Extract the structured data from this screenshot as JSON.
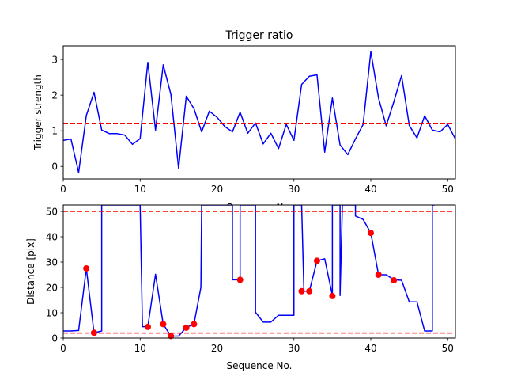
{
  "chart_data": [
    {
      "type": "line",
      "title": "Trigger ratio",
      "xlabel": "Sequence No.",
      "ylabel": "Trigger strength",
      "xlim": [
        0,
        51
      ],
      "ylim": [
        -0.35,
        3.38
      ],
      "xticks": [
        0,
        10,
        20,
        30,
        40,
        50
      ],
      "yticks": [
        0,
        1,
        2,
        3
      ],
      "grid": false,
      "series_color": "#0000ff",
      "threshold_color": "#ff0000",
      "series": [
        {
          "x": [
            0,
            1,
            2,
            3,
            4,
            5,
            6,
            7,
            8,
            9,
            10,
            11,
            12,
            13,
            14,
            15,
            16,
            17,
            18,
            19,
            20,
            21,
            22,
            23,
            24,
            25,
            26,
            27,
            28,
            29,
            30,
            31,
            32,
            33,
            34,
            35,
            36,
            37,
            38,
            39,
            40,
            41,
            42,
            43,
            44,
            45,
            46,
            47,
            48,
            49,
            50,
            51
          ],
          "values": [
            0.73,
            0.77,
            -0.17,
            1.43,
            2.08,
            1.02,
            0.92,
            0.92,
            0.88,
            0.62,
            0.78,
            2.92,
            1.02,
            2.85,
            2.02,
            -0.05,
            1.97,
            1.62,
            0.97,
            1.55,
            1.38,
            1.12,
            0.97,
            1.52,
            0.93,
            1.22,
            0.63,
            0.93,
            0.5,
            1.18,
            0.73,
            2.3,
            2.53,
            2.57,
            0.4,
            1.92,
            0.6,
            0.33,
            0.77,
            1.18,
            3.22,
            1.92,
            1.14,
            1.82,
            2.55,
            1.15,
            0.8,
            1.42,
            1.02,
            0.97,
            1.18,
            0.77
          ]
        }
      ],
      "thresholds": [
        1.21
      ]
    },
    {
      "type": "line",
      "title": "",
      "xlabel": "Sequence No.",
      "ylabel": "Distance [pix]",
      "xlim": [
        0,
        51
      ],
      "ylim": [
        0,
        52.5
      ],
      "xticks": [
        0,
        10,
        20,
        30,
        40,
        50
      ],
      "yticks": [
        0,
        10,
        20,
        30,
        40,
        50
      ],
      "grid": false,
      "series_color": "#0000ff",
      "marker_color": "#ff0000",
      "threshold_color": "#ff0000",
      "series": [
        {
          "x": [
            0,
            1,
            2,
            3,
            4,
            5,
            5,
            5.3,
            10,
            10.3,
            11,
            12,
            13,
            14,
            15,
            16,
            17,
            17.9,
            18,
            22,
            22,
            23,
            23,
            23.3,
            25,
            25,
            26,
            27,
            28,
            29,
            30,
            30,
            31,
            31.3,
            32,
            33,
            34,
            35,
            35,
            36,
            36,
            36.3,
            38,
            38,
            39,
            40,
            41,
            42,
            43,
            44,
            45,
            46,
            47,
            48,
            48,
            48.3
          ],
          "values": [
            2.8,
            2.8,
            3.0,
            27.5,
            2.1,
            2.8,
            52.5,
            52.5,
            52.5,
            4.5,
            4.5,
            25.2,
            5.5,
            0.8,
            0.8,
            4.2,
            5.5,
            20,
            52.5,
            52.5,
            23,
            23,
            52.5,
            52.5,
            52.5,
            10.2,
            6.3,
            6.3,
            9,
            9,
            9,
            52.5,
            52.5,
            18.5,
            18.5,
            30.5,
            31.3,
            16.8,
            52.5,
            52.5,
            16.8,
            52.5,
            52.5,
            48.2,
            46.8,
            41.5,
            25,
            25,
            23,
            22.8,
            14.3,
            14.3,
            2.8,
            2.8,
            52.5,
            52.5
          ]
        }
      ],
      "markers": {
        "x": [
          3,
          4,
          11,
          13,
          14,
          16,
          17,
          23,
          31,
          32,
          33,
          35,
          40,
          41,
          43
        ],
        "values": [
          27.5,
          2.1,
          4.4,
          5.5,
          0.8,
          4.1,
          5.5,
          23,
          18.5,
          18.5,
          30.5,
          16.6,
          41.5,
          25,
          22.8
        ]
      },
      "thresholds": [
        50,
        2
      ]
    }
  ]
}
